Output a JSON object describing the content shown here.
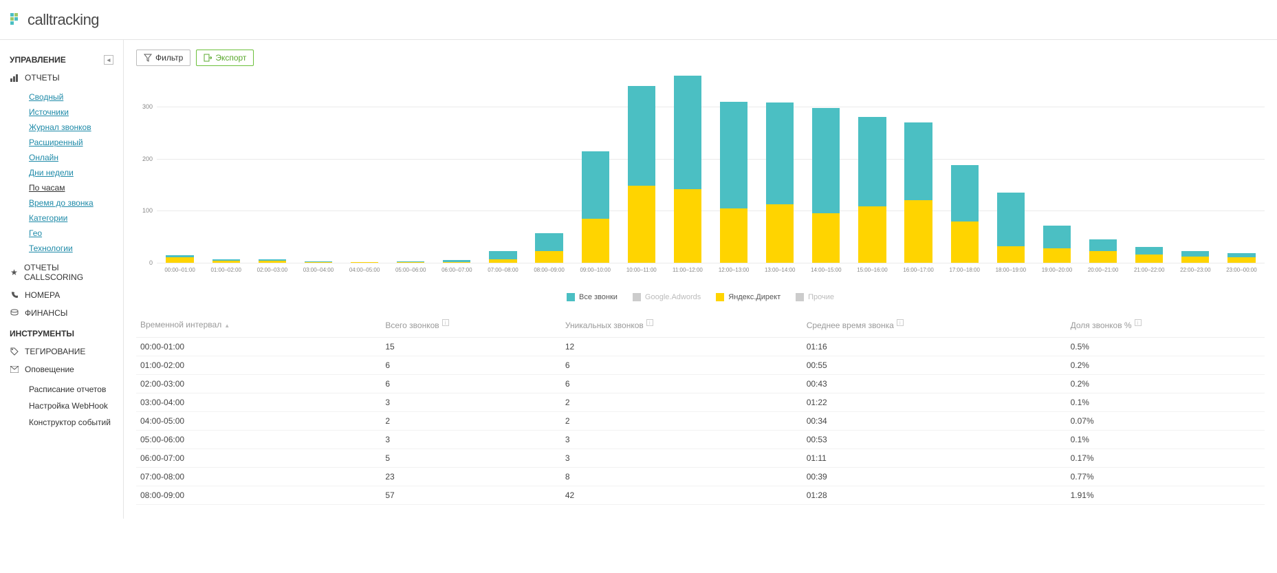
{
  "brand": {
    "name": "calltracking"
  },
  "sidebar": {
    "section_manage": "УПРАВЛЕНИЕ",
    "section_tools": "ИНСТРУМЕНТЫ",
    "reports_label": "ОТЧЕТЫ",
    "callscoring_label": "ОТЧЕТЫ CALLSCORING",
    "numbers_label": "НОМЕРА",
    "finance_label": "ФИНАНСЫ",
    "tagging_label": "ТЕГИРОВАНИЕ",
    "notify_label": "Оповещение",
    "report_items": [
      {
        "label": "Сводный",
        "active": false
      },
      {
        "label": "Источники",
        "active": false
      },
      {
        "label": "Журнал звонков",
        "active": false
      },
      {
        "label": "Расширенный",
        "active": false
      },
      {
        "label": "Онлайн",
        "active": false
      },
      {
        "label": "Дни недели",
        "active": false
      },
      {
        "label": "По часам",
        "active": true
      },
      {
        "label": "Время до звонка",
        "active": false
      },
      {
        "label": "Категории",
        "active": false
      },
      {
        "label": "Гео",
        "active": false
      },
      {
        "label": "Технологии",
        "active": false
      }
    ],
    "tool_items": [
      {
        "label": "Расписание отчетов"
      },
      {
        "label": "Настройка WebHook"
      },
      {
        "label": "Конструктор событий"
      }
    ]
  },
  "toolbar": {
    "filter_label": "Фильтр",
    "export_label": "Экспорт"
  },
  "chart": {
    "type": "stacked-bar",
    "ymax": 360,
    "yticks": [
      0,
      100,
      200,
      300
    ],
    "grid_color": "#eaeaea",
    "axis_label_color": "#888888",
    "background": "#ffffff",
    "categories": [
      "00:00–01:00",
      "01:00–02:00",
      "02:00–03:00",
      "03:00–04:00",
      "04:00–05:00",
      "05:00–06:00",
      "06:00–07:00",
      "07:00–08:00",
      "08:00–09:00",
      "09:00–10:00",
      "10:00–11:00",
      "11:00–12:00",
      "12:00–13:00",
      "13:00–14:00",
      "14:00–15:00",
      "15:00–16:00",
      "16:00–17:00",
      "17:00–18:00",
      "18:00–19:00",
      "19:00–20:00",
      "20:00–21:00",
      "21:00–22:00",
      "22:00–23:00",
      "23:00–00:00"
    ],
    "series": [
      {
        "name": "Все звонки",
        "color": "#4bbfc3",
        "muted": false
      },
      {
        "name": "Google.Adwords",
        "color": "#cccccc",
        "muted": true
      },
      {
        "name": "Яндекс.Директ",
        "color": "#ffd400",
        "muted": false
      },
      {
        "name": "Прочие",
        "color": "#cccccc",
        "muted": true
      }
    ],
    "stacks": [
      {
        "total": 15,
        "yandex": 10
      },
      {
        "total": 6,
        "yandex": 4
      },
      {
        "total": 6,
        "yandex": 4
      },
      {
        "total": 3,
        "yandex": 1
      },
      {
        "total": 2,
        "yandex": 1
      },
      {
        "total": 3,
        "yandex": 1
      },
      {
        "total": 5,
        "yandex": 2
      },
      {
        "total": 23,
        "yandex": 6
      },
      {
        "total": 57,
        "yandex": 22
      },
      {
        "total": 215,
        "yandex": 85
      },
      {
        "total": 340,
        "yandex": 148
      },
      {
        "total": 360,
        "yandex": 142
      },
      {
        "total": 310,
        "yandex": 105
      },
      {
        "total": 308,
        "yandex": 112
      },
      {
        "total": 298,
        "yandex": 95
      },
      {
        "total": 280,
        "yandex": 108
      },
      {
        "total": 270,
        "yandex": 120
      },
      {
        "total": 188,
        "yandex": 80
      },
      {
        "total": 135,
        "yandex": 32
      },
      {
        "total": 72,
        "yandex": 28
      },
      {
        "total": 45,
        "yandex": 22
      },
      {
        "total": 30,
        "yandex": 16
      },
      {
        "total": 22,
        "yandex": 12
      },
      {
        "total": 18,
        "yandex": 10
      }
    ]
  },
  "table": {
    "columns": [
      {
        "label": "Временной интервал",
        "sortable": true
      },
      {
        "label": "Всего звонков",
        "info": true
      },
      {
        "label": "Уникальных звонков",
        "info": true
      },
      {
        "label": "Среднее время звонка",
        "info": true
      },
      {
        "label": "Доля звонков %",
        "info": true
      }
    ],
    "rows": [
      [
        "00:00-01:00",
        "15",
        "12",
        "01:16",
        "0.5%"
      ],
      [
        "01:00-02:00",
        "6",
        "6",
        "00:55",
        "0.2%"
      ],
      [
        "02:00-03:00",
        "6",
        "6",
        "00:43",
        "0.2%"
      ],
      [
        "03:00-04:00",
        "3",
        "2",
        "01:22",
        "0.1%"
      ],
      [
        "04:00-05:00",
        "2",
        "2",
        "00:34",
        "0.07%"
      ],
      [
        "05:00-06:00",
        "3",
        "3",
        "00:53",
        "0.1%"
      ],
      [
        "06:00-07:00",
        "5",
        "3",
        "01:11",
        "0.17%"
      ],
      [
        "07:00-08:00",
        "23",
        "8",
        "00:39",
        "0.77%"
      ],
      [
        "08:00-09:00",
        "57",
        "42",
        "01:28",
        "1.91%"
      ]
    ]
  }
}
